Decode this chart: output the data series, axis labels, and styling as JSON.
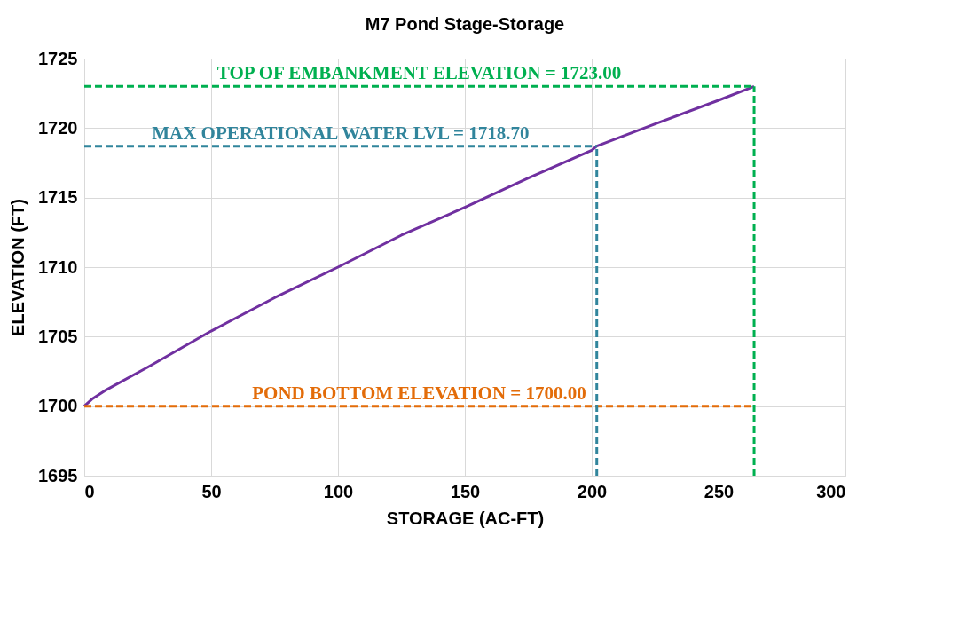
{
  "chart_data": {
    "type": "line",
    "title": "M7 Pond Stage-Storage",
    "xlabel": "STORAGE (AC-FT)",
    "ylabel": "ELEVATION (FT)",
    "x": [
      0,
      3,
      8,
      25,
      50,
      75,
      100,
      125,
      150,
      175,
      200,
      202,
      225,
      250,
      264
    ],
    "series": [
      {
        "color": "#7030a0",
        "values": [
          1700,
          1700.5,
          1701.1,
          1702.8,
          1705.4,
          1707.8,
          1710.0,
          1712.3,
          1714.3,
          1716.4,
          1718.4,
          1718.7,
          1720.3,
          1722.0,
          1723.0
        ]
      }
    ],
    "xlim": [
      0,
      300
    ],
    "xticks": [
      0,
      50,
      100,
      150,
      200,
      250,
      300
    ],
    "ylim": [
      1695,
      1725
    ],
    "yticks": [
      1695,
      1700,
      1705,
      1710,
      1715,
      1720,
      1725
    ],
    "grid": true,
    "marker": "none",
    "line_style": "solid",
    "ref_lines": [
      {
        "axis": "y",
        "value": 1723,
        "label": "TOP OF EMBANKMENT ELEVATION = 1723.00",
        "color": "#00b050",
        "line_style": "dashed"
      },
      {
        "axis": "y",
        "value": 1718.7,
        "label": "MAX OPERATIONAL WATER LVL = 1718.70",
        "color": "#31859c",
        "line_style": "dashed"
      },
      {
        "axis": "y",
        "value": 1700,
        "label": "POND BOTTOM ELEVATION = 1700.00",
        "color": "#e36c09",
        "line_style": "dashed"
      },
      {
        "axis": "x",
        "value": 264,
        "color": "#00b050",
        "line_style": "dashed"
      },
      {
        "axis": "x",
        "value": 202,
        "color": "#31859c",
        "line_style": "dashed"
      }
    ]
  }
}
